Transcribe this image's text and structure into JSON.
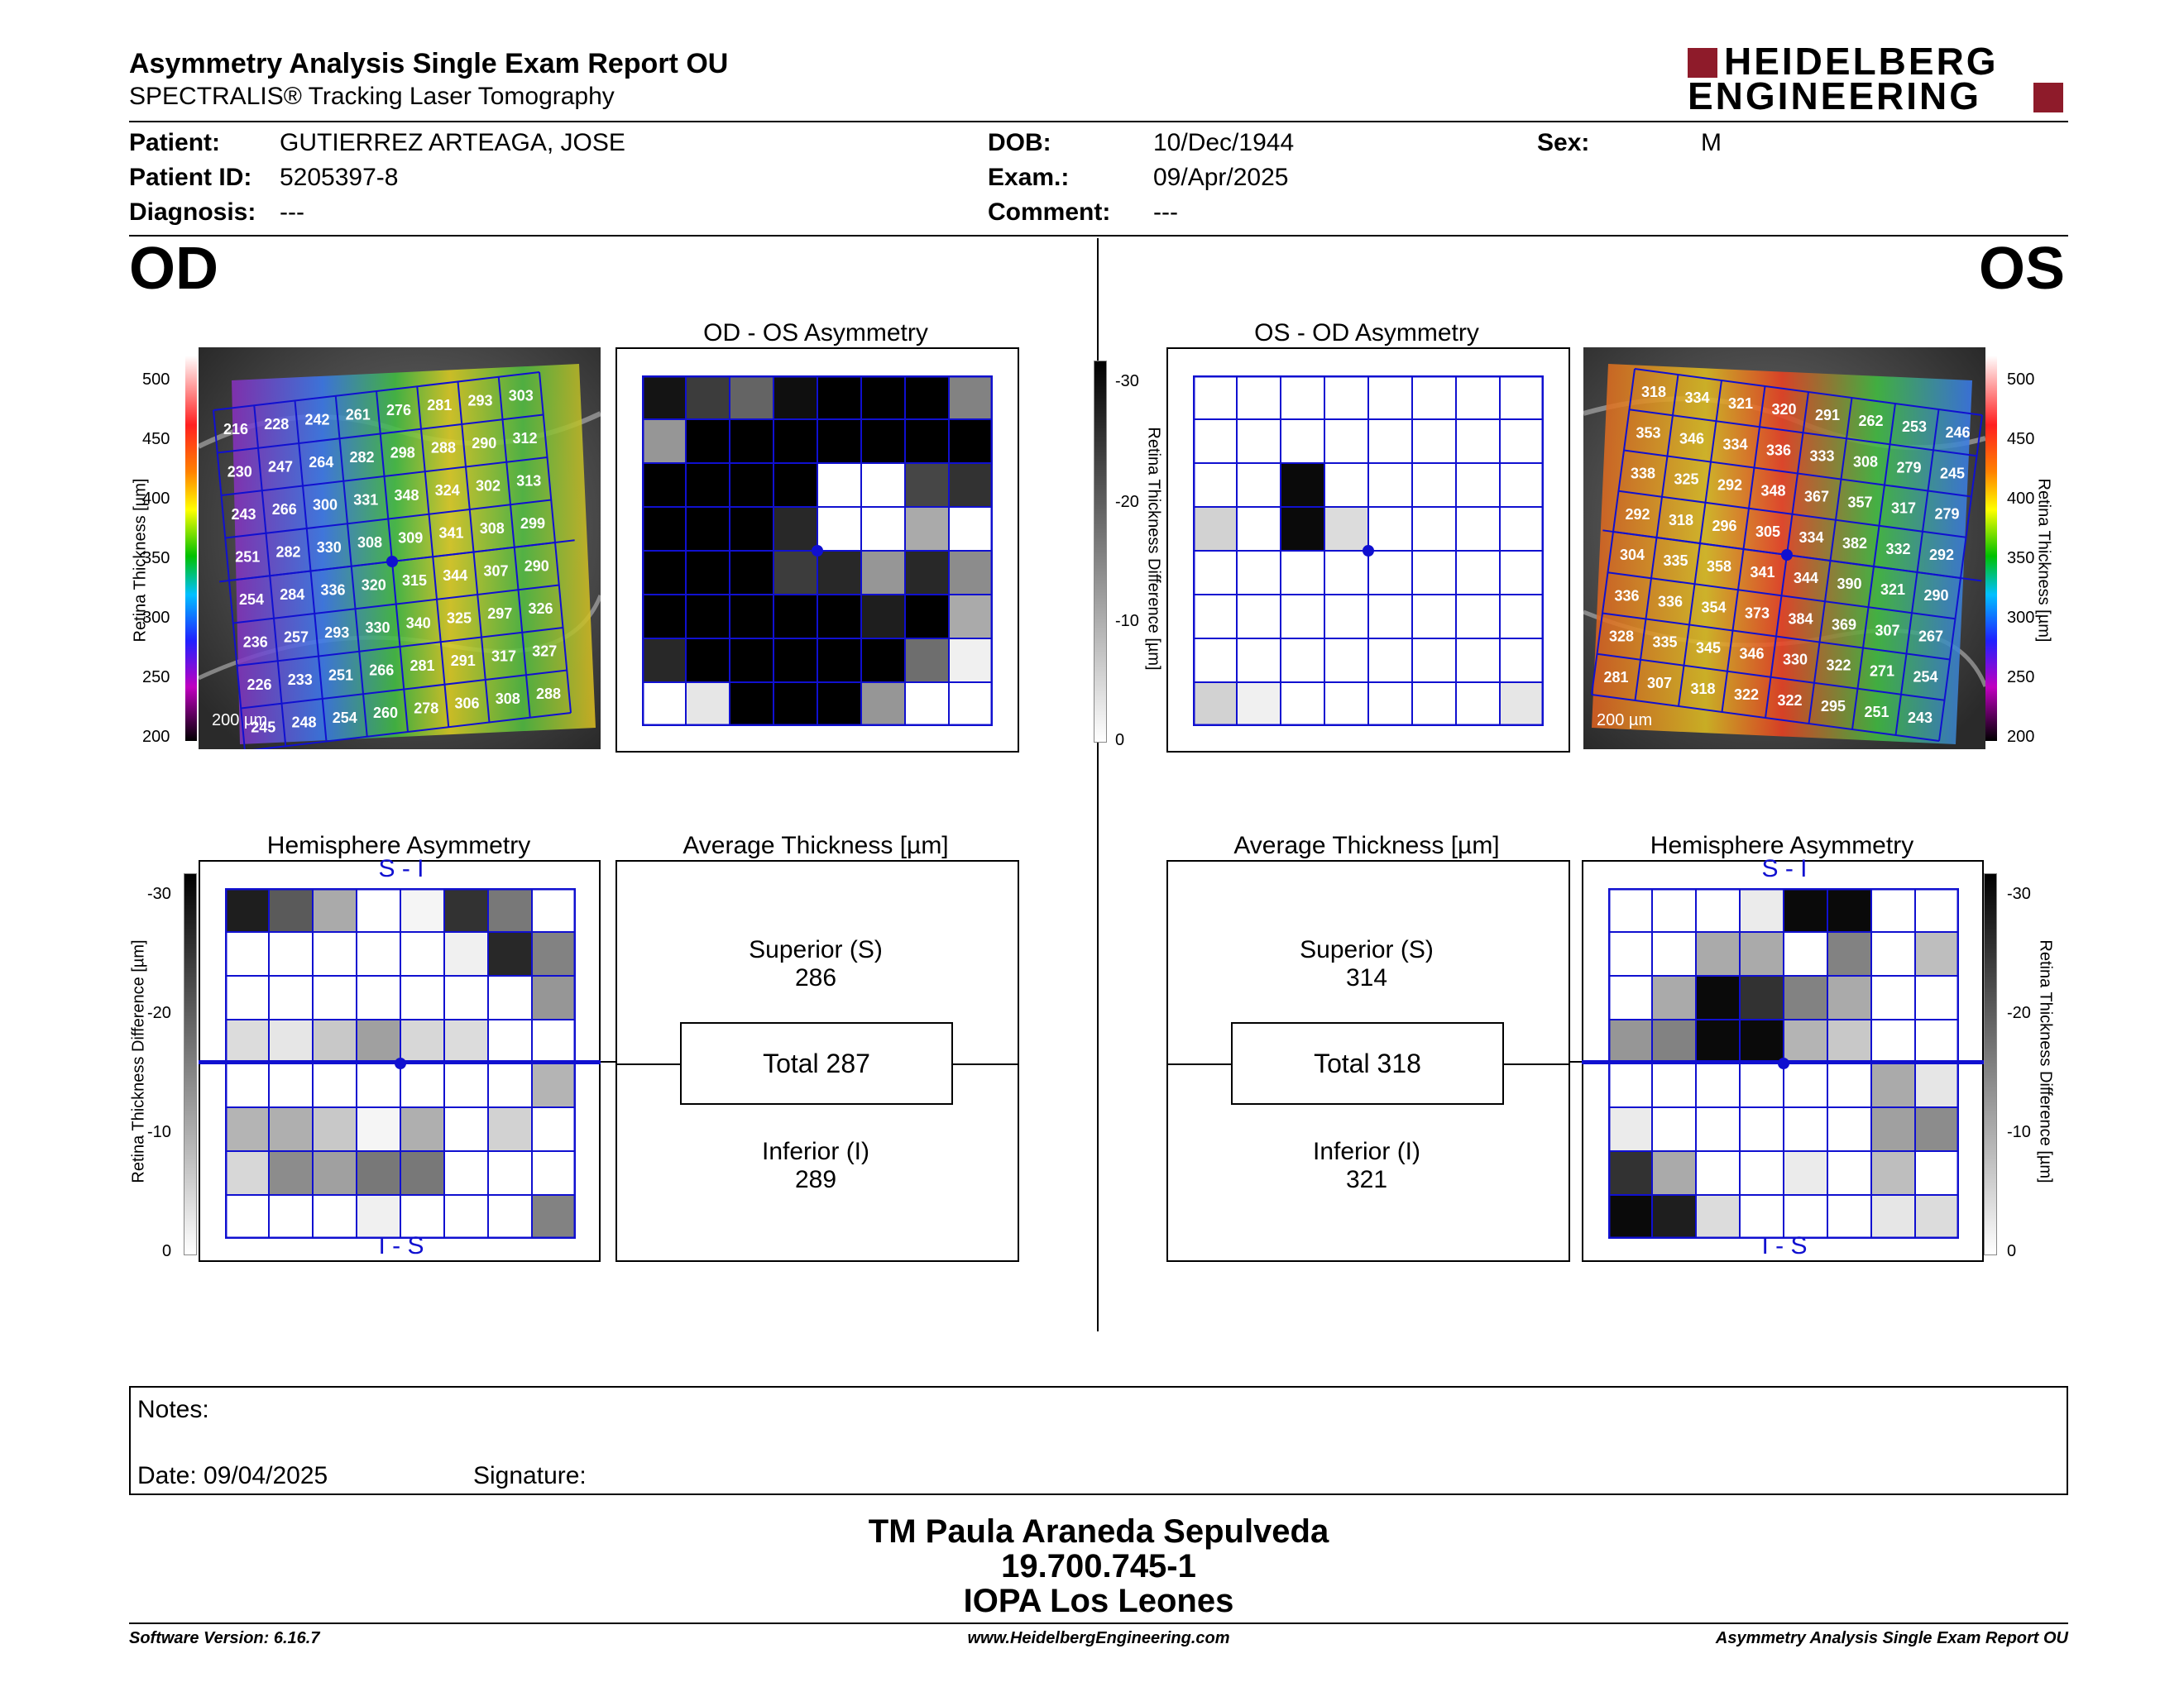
{
  "report": {
    "title": "Asymmetry Analysis Single Exam Report OU",
    "subtitle": "SPECTRALIS® Tracking Laser Tomography",
    "brand_line1": "HEIDELBERG",
    "brand_line2": "ENGINEERING"
  },
  "patient": {
    "patient_label": "Patient:",
    "patient_value": "GUTIERREZ ARTEAGA, JOSE",
    "id_label": "Patient ID:",
    "id_value": "5205397-8",
    "diag_label": "Diagnosis:",
    "diag_value": "---",
    "dob_label": "DOB:",
    "dob_value": "10/Dec/1944",
    "exam_label": "Exam.:",
    "exam_value": "09/Apr/2025",
    "comment_label": "Comment:",
    "comment_value": "---",
    "sex_label": "Sex:",
    "sex_value": "M"
  },
  "od": {
    "eye": "OD",
    "asym_title": "OD - OS Asymmetry",
    "hemi_title": "Hemisphere Asymmetry",
    "hemi_top": "S - I",
    "hemi_bottom": "I - S",
    "avg_title": "Average Thickness [µm]",
    "superior_label": "Superior (S)",
    "superior_value": "286",
    "total": "Total 287",
    "inferior_label": "Inferior (I)",
    "inferior_value": "289",
    "scale_bar": "200 µm",
    "grid": [
      [
        "216",
        "228",
        "242",
        "261",
        "276",
        "281",
        "293",
        "303"
      ],
      [
        "230",
        "247",
        "264",
        "282",
        "298",
        "288",
        "290",
        "312"
      ],
      [
        "243",
        "266",
        "300",
        "331",
        "348",
        "324",
        "302",
        "313"
      ],
      [
        "251",
        "282",
        "330",
        "308",
        "309",
        "341",
        "308",
        "299"
      ],
      [
        "254",
        "284",
        "336",
        "320",
        "315",
        "344",
        "307",
        "290"
      ],
      [
        "236",
        "257",
        "293",
        "330",
        "340",
        "325",
        "297",
        "326"
      ],
      [
        "226",
        "233",
        "251",
        "266",
        "281",
        "291",
        "317",
        "327"
      ],
      [
        "245",
        "248",
        "254",
        "260",
        "278",
        "306",
        "308",
        "288"
      ]
    ],
    "asym_grays": [
      [
        20,
        60,
        100,
        15,
        0,
        0,
        0,
        130
      ],
      [
        150,
        0,
        0,
        0,
        0,
        0,
        0,
        0
      ],
      [
        0,
        0,
        0,
        0,
        255,
        255,
        70,
        50
      ],
      [
        0,
        0,
        0,
        40,
        255,
        255,
        170,
        255
      ],
      [
        0,
        0,
        0,
        60,
        40,
        150,
        40,
        140
      ],
      [
        0,
        0,
        0,
        0,
        0,
        30,
        0,
        170
      ],
      [
        40,
        0,
        0,
        0,
        0,
        0,
        110,
        240
      ],
      [
        255,
        230,
        0,
        0,
        0,
        150,
        255,
        255
      ]
    ],
    "hemi_grays": [
      [
        30,
        90,
        170,
        255,
        245,
        50,
        120,
        255
      ],
      [
        255,
        255,
        255,
        255,
        255,
        240,
        40,
        130
      ],
      [
        255,
        255,
        255,
        255,
        255,
        255,
        255,
        150
      ],
      [
        220,
        230,
        200,
        160,
        215,
        220,
        255,
        255
      ],
      [
        255,
        255,
        255,
        255,
        255,
        255,
        255,
        180
      ],
      [
        180,
        175,
        200,
        245,
        175,
        255,
        210,
        255
      ],
      [
        215,
        140,
        160,
        120,
        120,
        255,
        255,
        255
      ],
      [
        255,
        255,
        255,
        240,
        255,
        255,
        255,
        130
      ]
    ]
  },
  "os": {
    "eye": "OS",
    "asym_title": "OS - OD Asymmetry",
    "hemi_title": "Hemisphere Asymmetry",
    "hemi_top": "S - I",
    "hemi_bottom": "I - S",
    "avg_title": "Average Thickness [µm]",
    "superior_label": "Superior (S)",
    "superior_value": "314",
    "total": "Total 318",
    "inferior_label": "Inferior (I)",
    "inferior_value": "321",
    "scale_bar": "200 µm",
    "grid": [
      [
        "318",
        "334",
        "321",
        "320",
        "291",
        "262",
        "253",
        "246"
      ],
      [
        "353",
        "346",
        "334",
        "336",
        "333",
        "308",
        "279",
        "245"
      ],
      [
        "338",
        "325",
        "292",
        "348",
        "367",
        "357",
        "317",
        "279"
      ],
      [
        "292",
        "318",
        "296",
        "305",
        "334",
        "382",
        "332",
        "292"
      ],
      [
        "304",
        "335",
        "358",
        "341",
        "344",
        "390",
        "321",
        "290"
      ],
      [
        "336",
        "336",
        "354",
        "373",
        "384",
        "369",
        "307",
        "267"
      ],
      [
        "328",
        "335",
        "345",
        "346",
        "330",
        "322",
        "271",
        "254"
      ],
      [
        "281",
        "307",
        "318",
        "322",
        "322",
        "295",
        "251",
        "243"
      ]
    ],
    "asym_grays": [
      [
        255,
        255,
        255,
        255,
        255,
        255,
        255,
        255
      ],
      [
        255,
        255,
        255,
        255,
        255,
        255,
        255,
        255
      ],
      [
        255,
        255,
        10,
        255,
        255,
        255,
        255,
        255
      ],
      [
        210,
        255,
        10,
        220,
        255,
        255,
        255,
        255
      ],
      [
        255,
        255,
        255,
        255,
        255,
        255,
        255,
        255
      ],
      [
        255,
        255,
        255,
        255,
        255,
        255,
        255,
        255
      ],
      [
        255,
        255,
        255,
        255,
        255,
        255,
        255,
        255
      ],
      [
        210,
        240,
        255,
        255,
        255,
        255,
        255,
        230
      ]
    ],
    "hemi_grays": [
      [
        255,
        255,
        255,
        235,
        10,
        10,
        255,
        255
      ],
      [
        255,
        255,
        170,
        170,
        255,
        130,
        255,
        190
      ],
      [
        255,
        170,
        10,
        50,
        130,
        170,
        255,
        255
      ],
      [
        150,
        130,
        10,
        10,
        180,
        200,
        255,
        255
      ],
      [
        255,
        255,
        255,
        255,
        255,
        255,
        170,
        230
      ],
      [
        235,
        255,
        255,
        255,
        255,
        255,
        160,
        140
      ],
      [
        50,
        170,
        255,
        255,
        235,
        255,
        190,
        255
      ],
      [
        10,
        30,
        220,
        255,
        255,
        255,
        230,
        220
      ]
    ]
  },
  "axis": {
    "thickness_label": "Retina Thickness [µm]",
    "thickness_ticks": [
      "500",
      "450",
      "400",
      "350",
      "300",
      "250",
      "200"
    ],
    "diff_label": "Retina Thickness Difference [µm]",
    "diff_ticks": [
      "-30",
      "-20",
      "-10",
      "0"
    ]
  },
  "notes": {
    "notes_label": "Notes:",
    "date_label": "Date: 09/04/2025",
    "signature_label": "Signature:"
  },
  "operator": {
    "name": "TM Paula Araneda Sepulveda",
    "rut": "19.700.745-1",
    "site": "IOPA Los Leones"
  },
  "footer": {
    "software": "Software Version: 6.16.7",
    "website": "www.HeidelbergEngineering.com",
    "report_name": "Asymmetry Analysis Single Exam Report OU"
  }
}
